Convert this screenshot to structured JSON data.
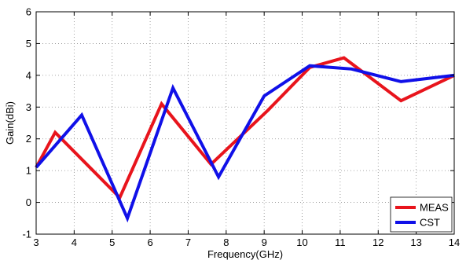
{
  "chart_data": {
    "type": "line",
    "title": "",
    "xlabel": "Frequency(GHz)",
    "ylabel": "Gain(dBi)",
    "xlim": [
      3,
      14
    ],
    "ylim": [
      -1,
      6
    ],
    "xticks": [
      "3",
      "4",
      "5",
      "6",
      "7",
      "8",
      "9",
      "10",
      "11",
      "12",
      "13",
      "14"
    ],
    "yticks": [
      "-1",
      "0",
      "1",
      "2",
      "3",
      "4",
      "5",
      "6"
    ],
    "grid": true,
    "grid_style": "dotted",
    "legend_position": "bottom-right",
    "series": [
      {
        "name": "MEAS",
        "color": "#e8141c",
        "x": [
          3.0,
          3.5,
          5.2,
          6.3,
          7.6,
          9.1,
          10.2,
          11.1,
          12.6,
          14.0
        ],
        "y": [
          1.1,
          2.2,
          0.15,
          3.1,
          1.2,
          2.9,
          4.25,
          4.55,
          3.2,
          4.0
        ]
      },
      {
        "name": "CST",
        "color": "#1010e8",
        "x": [
          3.0,
          4.2,
          5.4,
          6.6,
          7.8,
          9.0,
          10.2,
          11.3,
          12.6,
          14.0
        ],
        "y": [
          1.1,
          2.75,
          -0.5,
          3.6,
          0.8,
          3.35,
          4.3,
          4.2,
          3.8,
          4.0
        ]
      }
    ]
  }
}
